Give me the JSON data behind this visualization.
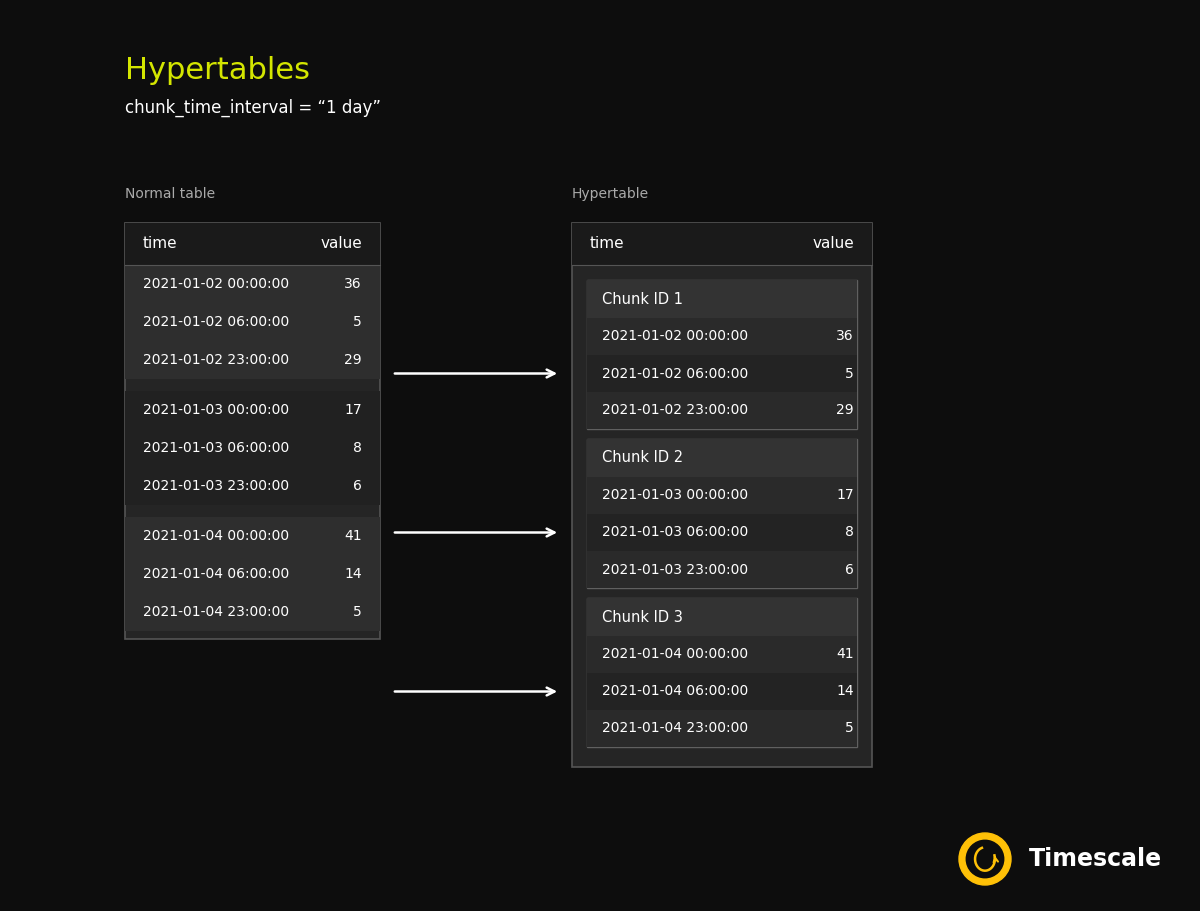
{
  "title": "Hypertables",
  "subtitle": "chunk_time_interval = “1 day”",
  "background_color": "#0d0d0d",
  "title_color": "#d4e600",
  "subtitle_color": "#ffffff",
  "label_color": "#aaaaaa",
  "text_color": "#ffffff",
  "table_bg": "#252525",
  "table_header_bg": "#1a1a1a",
  "table_border_color": "#555555",
  "chunk_header_bg": "#333333",
  "chunk_border_color": "#606060",
  "group_bg_1": "#2e2e2e",
  "group_bg_2": "#212121",
  "row_bg_light": "#2a2a2a",
  "row_bg_dark": "#232323",
  "normal_table_label": "Normal table",
  "hyper_table_label": "Hypertable",
  "columns": [
    "time",
    "value"
  ],
  "chunks": [
    {
      "id": "Chunk ID 1",
      "rows": [
        [
          "2021-01-02 00:00:00",
          "36"
        ],
        [
          "2021-01-02 06:00:00",
          "5"
        ],
        [
          "2021-01-02 23:00:00",
          "29"
        ]
      ]
    },
    {
      "id": "Chunk ID 2",
      "rows": [
        [
          "2021-01-03 00:00:00",
          "17"
        ],
        [
          "2021-01-03 06:00:00",
          "8"
        ],
        [
          "2021-01-03 23:00:00",
          "6"
        ]
      ]
    },
    {
      "id": "Chunk ID 3",
      "rows": [
        [
          "2021-01-04 00:00:00",
          "41"
        ],
        [
          "2021-01-04 06:00:00",
          "14"
        ],
        [
          "2021-01-04 23:00:00",
          "5"
        ]
      ]
    }
  ],
  "timescale_logo_color": "#FFC107",
  "timescale_text": "Timescale",
  "arrow_color": "#ffffff"
}
